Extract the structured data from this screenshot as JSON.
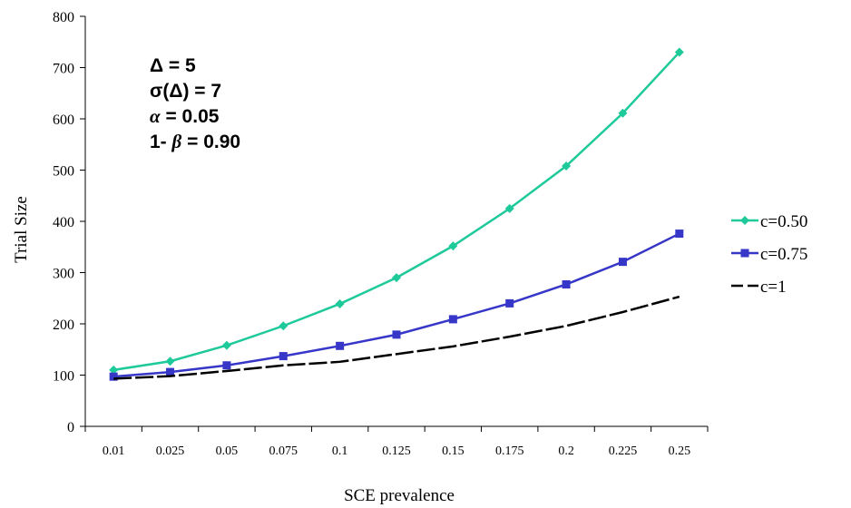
{
  "chart_data": {
    "type": "line",
    "title": "",
    "xlabel": "SCE prevalence",
    "ylabel": "Trial Size",
    "categories": [
      "0.01",
      "0.025",
      "0.05",
      "0.075",
      "0.1",
      "0.125",
      "0.15",
      "0.175",
      "0.2",
      "0.225",
      "0.25"
    ],
    "ylim": [
      0,
      800
    ],
    "yticks": [
      "0",
      "100",
      "200",
      "300",
      "400",
      "500",
      "600",
      "700",
      "800"
    ],
    "grid": false,
    "legend_position": "right",
    "series": [
      {
        "name": "c=0.50",
        "color": "#1ec99a",
        "marker": "diamond",
        "dash": "solid",
        "values": [
          110,
          127,
          158,
          196,
          239,
          290,
          352,
          425,
          508,
          611,
          730
        ]
      },
      {
        "name": "c=0.75",
        "color": "#3636c8",
        "marker": "square",
        "dash": "solid",
        "values": [
          97,
          106,
          119,
          137,
          157,
          179,
          209,
          240,
          277,
          321,
          376
        ]
      },
      {
        "name": "c=1",
        "color": "#000000",
        "marker": "none",
        "dash": "dashed",
        "values": [
          93,
          98,
          108,
          119,
          126,
          141,
          156,
          175,
          196,
          223,
          253
        ]
      }
    ],
    "annotations": [
      {
        "prefix": "Δ = 5",
        "italic": "",
        "suffix": ""
      },
      {
        "prefix": "σ(Δ) = 7",
        "italic": "",
        "suffix": ""
      },
      {
        "prefix": "",
        "italic": "α",
        "suffix": " = 0.05"
      },
      {
        "prefix": "1- ",
        "italic": "β",
        "suffix": " = 0.90"
      }
    ]
  }
}
